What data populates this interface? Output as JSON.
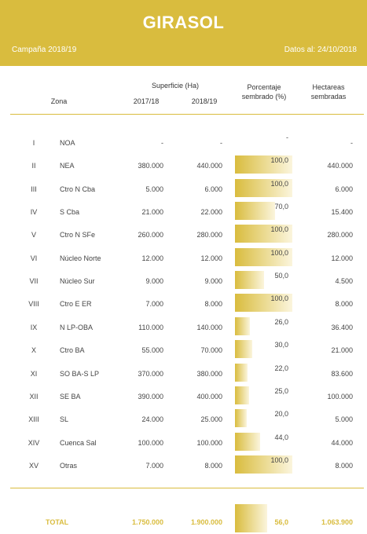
{
  "header": {
    "title": "GIRASOL",
    "campaign": "Campaña 2018/19",
    "date": "Datos al: 24/10/2018"
  },
  "columns": {
    "zona": "Zona",
    "superficie": "Superficie (Ha)",
    "y1": "2017/18",
    "y2": "2018/19",
    "pct_line1": "Porcentaje",
    "pct_line2": "sembrado (%)",
    "ha_line1": "Hectareas",
    "ha_line2": "sembradas"
  },
  "rows": [
    {
      "roman": "I",
      "zona": "NOA",
      "s17": "-",
      "s18": "-",
      "pct": "-",
      "pct_value": 0,
      "ha": "-"
    },
    {
      "roman": "II",
      "zona": "NEA",
      "s17": "380.000",
      "s18": "440.000",
      "pct": "100,0",
      "pct_value": 100,
      "ha": "440.000"
    },
    {
      "roman": "III",
      "zona": "Ctro N Cba",
      "s17": "5.000",
      "s18": "6.000",
      "pct": "100,0",
      "pct_value": 100,
      "ha": "6.000"
    },
    {
      "roman": "IV",
      "zona": "S Cba",
      "s17": "21.000",
      "s18": "22.000",
      "pct": "70,0",
      "pct_value": 70,
      "ha": "15.400"
    },
    {
      "roman": "V",
      "zona": "Ctro N SFe",
      "s17": "260.000",
      "s18": "280.000",
      "pct": "100,0",
      "pct_value": 100,
      "ha": "280.000"
    },
    {
      "roman": "VI",
      "zona": "Núcleo Norte",
      "s17": "12.000",
      "s18": "12.000",
      "pct": "100,0",
      "pct_value": 100,
      "ha": "12.000"
    },
    {
      "roman": "VII",
      "zona": "Núcleo Sur",
      "s17": "9.000",
      "s18": "9.000",
      "pct": "50,0",
      "pct_value": 50,
      "ha": "4.500"
    },
    {
      "roman": "VIII",
      "zona": "Ctro E ER",
      "s17": "7.000",
      "s18": "8.000",
      "pct": "100,0",
      "pct_value": 100,
      "ha": "8.000"
    },
    {
      "roman": "IX",
      "zona": "N LP-OBA",
      "s17": "110.000",
      "s18": "140.000",
      "pct": "26,0",
      "pct_value": 26,
      "ha": "36.400"
    },
    {
      "roman": "X",
      "zona": "Ctro BA",
      "s17": "55.000",
      "s18": "70.000",
      "pct": "30,0",
      "pct_value": 30,
      "ha": "21.000"
    },
    {
      "roman": "XI",
      "zona": "SO BA-S LP",
      "s17": "370.000",
      "s18": "380.000",
      "pct": "22,0",
      "pct_value": 22,
      "ha": "83.600"
    },
    {
      "roman": "XII",
      "zona": "SE BA",
      "s17": "390.000",
      "s18": "400.000",
      "pct": "25,0",
      "pct_value": 25,
      "ha": "100.000"
    },
    {
      "roman": "XIII",
      "zona": "SL",
      "s17": "24.000",
      "s18": "25.000",
      "pct": "20,0",
      "pct_value": 20,
      "ha": "5.000"
    },
    {
      "roman": "XIV",
      "zona": "Cuenca Sal",
      "s17": "100.000",
      "s18": "100.000",
      "pct": "44,0",
      "pct_value": 44,
      "ha": "44.000"
    },
    {
      "roman": "XV",
      "zona": "Otras",
      "s17": "7.000",
      "s18": "8.000",
      "pct": "100,0",
      "pct_value": 100,
      "ha": "8.000"
    }
  ],
  "total": {
    "label": "TOTAL",
    "s17": "1.750.000",
    "s18": "1.900.000",
    "pct": "56,0",
    "pct_value": 56,
    "ha": "1.063.900"
  },
  "colors": {
    "accent": "#d9bc3e"
  }
}
